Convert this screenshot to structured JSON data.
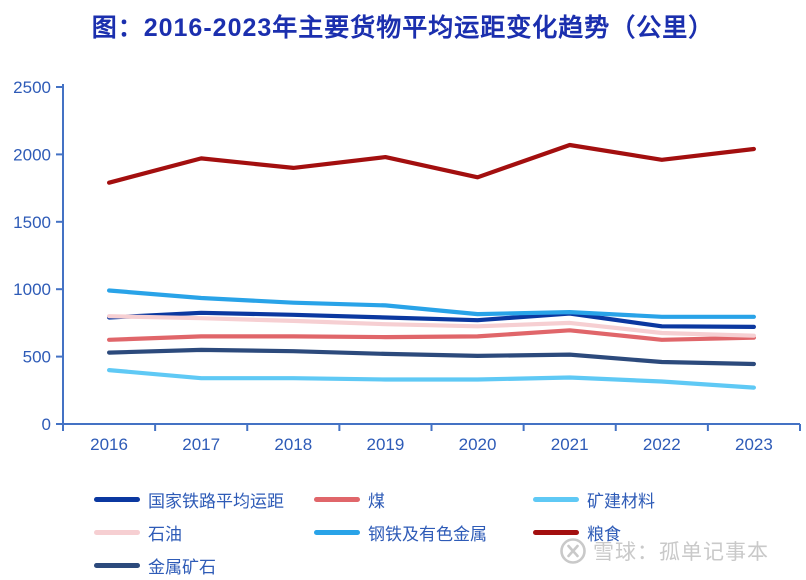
{
  "title": "图：2016-2023年主要货物平均运距变化趋势（公里）",
  "watermark": {
    "text": "雪球：孤单记事本",
    "logo": "snowball-logo"
  },
  "colors": {
    "title": "#1b2fae",
    "axis": "#4472c4",
    "tick_text": "#2e5bb7",
    "legend_text": "#2e5bb7",
    "watermark": "#c9c9c9",
    "background": "#ffffff"
  },
  "chart_data": {
    "type": "line",
    "title": "图：2016-2023年主要货物平均运距变化趋势（公里）",
    "xlabel": "",
    "ylabel": "",
    "categories": [
      "2016",
      "2017",
      "2018",
      "2019",
      "2020",
      "2021",
      "2022",
      "2023"
    ],
    "series": [
      {
        "name": "国家铁路平均运距",
        "color": "#0b38a0",
        "values": [
          790,
          825,
          810,
          790,
          770,
          820,
          725,
          720
        ]
      },
      {
        "name": "煤",
        "color": "#e0666a",
        "values": [
          625,
          650,
          650,
          645,
          650,
          695,
          625,
          640
        ]
      },
      {
        "name": "矿建材料",
        "color": "#5fc9f5",
        "values": [
          400,
          340,
          340,
          330,
          330,
          345,
          315,
          270
        ]
      },
      {
        "name": "石油",
        "color": "#f6cfd2",
        "values": [
          800,
          785,
          765,
          740,
          725,
          750,
          675,
          655
        ]
      },
      {
        "name": "钢铁及有色金属",
        "color": "#29a3e8",
        "values": [
          990,
          935,
          900,
          880,
          815,
          830,
          795,
          795
        ]
      },
      {
        "name": "粮食",
        "color": "#a30f0f",
        "values": [
          1790,
          1970,
          1900,
          1980,
          1830,
          2070,
          1960,
          2040
        ]
      },
      {
        "name": "金属矿石",
        "color": "#2c4a7c",
        "values": [
          530,
          550,
          540,
          520,
          505,
          515,
          460,
          445
        ]
      }
    ],
    "ylim": [
      0,
      2500
    ],
    "yticks": [
      0,
      500,
      1000,
      1500,
      2000,
      2500
    ],
    "grid": false,
    "legend_position": "bottom"
  }
}
